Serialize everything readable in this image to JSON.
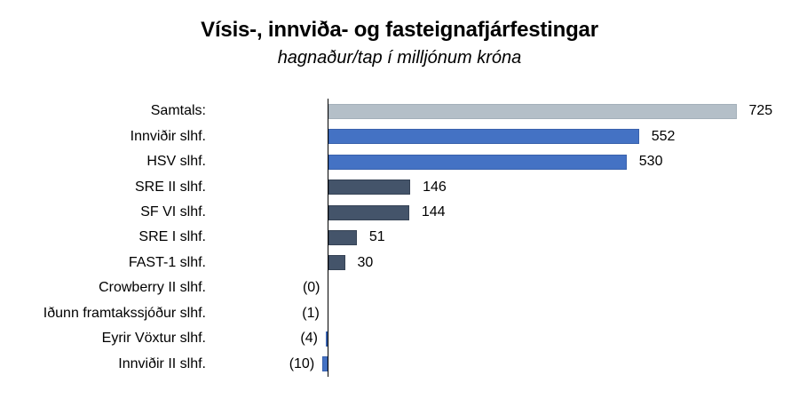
{
  "chart": {
    "title": "Vísis-, innviða- og fasteignafjárfestingar",
    "subtitle": "hagnaður/tap í milljónum króna"
  },
  "chart_data": {
    "type": "bar",
    "orientation": "horizontal",
    "title": "Vísis-, innviða- og fasteignafjárfestingar",
    "subtitle": "hagnaður/tap í milljónum króna",
    "categories": [
      "Samtals:",
      "Innviðir slhf.",
      "HSV slhf.",
      "SRE II slhf.",
      "SF VI slhf.",
      "SRE I slhf.",
      "FAST-1 slhf.",
      "Crowberry II slhf.",
      "Iðunn framtakssjóður slhf.",
      "Eyrir Vöxtur slhf.",
      "Innviðir II slhf."
    ],
    "values": [
      725,
      552,
      530,
      146,
      144,
      51,
      30,
      0,
      -1,
      -4,
      -10
    ],
    "value_labels": [
      "725",
      "552",
      "530",
      "146",
      "144",
      "51",
      "30",
      "(0)",
      "(1)",
      "(4)",
      "(10)"
    ],
    "bar_color_keys": [
      "gray",
      "blue",
      "blue",
      "dark",
      "dark",
      "dark",
      "dark",
      "blue",
      "blue",
      "blue",
      "blue"
    ],
    "colors": {
      "gray": "#B4BFC8",
      "blue": "#4472C4",
      "dark": "#44546A",
      "axis": "#000000"
    },
    "negative_format": "parentheses",
    "xlim": [
      -10,
      760
    ],
    "grid": false,
    "legend": false,
    "value_labels_position": "outside-end"
  }
}
